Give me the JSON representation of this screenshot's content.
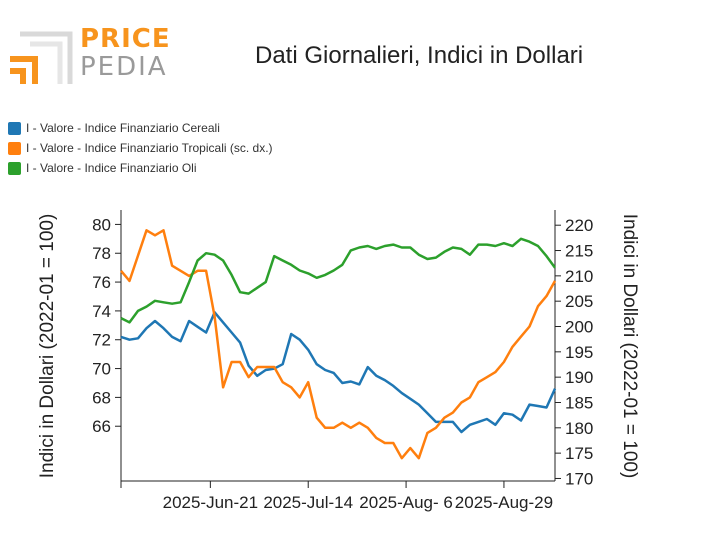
{
  "logo": {
    "word_a": "PRICE",
    "word_b": "PEDIA",
    "color_a": "#f7941d",
    "color_b": "#9a9a9a"
  },
  "title": "Dati Giornalieri, Indici in Dollari",
  "chart_data": {
    "type": "line",
    "title": "Dati Giornalieri, Indici in Dollari",
    "ylabel_left": "Indici in Dollari (2022-01 = 100)",
    "ylabel_right": "Indici in Dollari (2022-01 = 100)",
    "ylim_left": [
      62.2,
      81
    ],
    "ylim_right": [
      169.5,
      223
    ],
    "yticks_left": [
      66,
      68,
      70,
      72,
      74,
      76,
      78,
      80
    ],
    "yticks_right": [
      170,
      175,
      180,
      185,
      190,
      195,
      200,
      205,
      210,
      215,
      220
    ],
    "x_ticks": [
      "2025-Jun-21",
      "2025-Jul-14",
      "2025-Aug- 6",
      "2025-Aug-29"
    ],
    "x_day_range": [
      0,
      102
    ],
    "x_tick_days": [
      21,
      44,
      67,
      90
    ],
    "grid": false,
    "legend_position": "top-left",
    "series": [
      {
        "name": "I - Valore - Indice Finanziario Cereali",
        "axis": "left",
        "color": "#1f77b4",
        "x": [
          0,
          2,
          4,
          6,
          8,
          10,
          12,
          14,
          16,
          18,
          20,
          22,
          24,
          26,
          28,
          30,
          32,
          34,
          36,
          38,
          40,
          42,
          44,
          46,
          48,
          50,
          52,
          54,
          56,
          58,
          60,
          62,
          64,
          66,
          68,
          70,
          72,
          74,
          76,
          78,
          80,
          82,
          84,
          86,
          88,
          90,
          92,
          94,
          96,
          98,
          100,
          102
        ],
        "y": [
          72.2,
          72.0,
          72.1,
          72.8,
          73.3,
          72.8,
          72.2,
          71.9,
          73.3,
          72.9,
          72.5,
          73.9,
          73.2,
          72.5,
          71.8,
          70.2,
          69.5,
          69.9,
          70.0,
          70.3,
          72.4,
          72.0,
          71.3,
          70.3,
          69.9,
          69.7,
          69.0,
          69.1,
          68.9,
          70.1,
          69.5,
          69.2,
          68.8,
          68.3,
          67.9,
          67.5,
          66.9,
          66.3,
          66.3,
          66.3,
          65.6,
          66.1,
          66.3,
          66.5,
          66.1,
          66.9,
          66.8,
          66.4,
          67.5,
          67.4,
          67.3,
          68.6
        ]
      },
      {
        "name": "I - Valore - Indice Finanziario Tropicali (sc. dx.)",
        "axis": "right",
        "color": "#ff7f0e",
        "x": [
          0,
          2,
          4,
          6,
          8,
          10,
          12,
          14,
          16,
          18,
          20,
          22,
          24,
          26,
          28,
          30,
          32,
          34,
          36,
          38,
          40,
          42,
          44,
          46,
          48,
          50,
          52,
          54,
          56,
          58,
          60,
          62,
          64,
          66,
          68,
          70,
          72,
          74,
          76,
          78,
          80,
          82,
          84,
          86,
          88,
          90,
          92,
          94,
          96,
          98,
          100,
          102
        ],
        "y": [
          211,
          209,
          214,
          219,
          218,
          219,
          212,
          211,
          210,
          211,
          211,
          202,
          188,
          193,
          193,
          190,
          192,
          192,
          192,
          189,
          188,
          186,
          189,
          182,
          180,
          180,
          181,
          180,
          181,
          180,
          178,
          177,
          177,
          174,
          176,
          174,
          179,
          180,
          182,
          183,
          185,
          186,
          189,
          190,
          191,
          193,
          196,
          198,
          200,
          204,
          206,
          209
        ]
      },
      {
        "name": "I - Valore - Indice Finanziario Oli",
        "axis": "left",
        "color": "#2ca02c",
        "x": [
          0,
          2,
          4,
          6,
          8,
          10,
          12,
          14,
          16,
          18,
          20,
          22,
          24,
          26,
          28,
          30,
          32,
          34,
          36,
          38,
          40,
          42,
          44,
          46,
          48,
          50,
          52,
          54,
          56,
          58,
          60,
          62,
          64,
          66,
          68,
          70,
          72,
          74,
          76,
          78,
          80,
          82,
          84,
          86,
          88,
          90,
          92,
          94,
          96,
          98,
          100,
          102
        ],
        "y": [
          73.5,
          73.2,
          74.0,
          74.3,
          74.7,
          74.6,
          74.5,
          74.6,
          76.0,
          77.5,
          78.0,
          77.9,
          77.5,
          76.5,
          75.3,
          75.2,
          75.6,
          76.0,
          77.8,
          77.5,
          77.2,
          76.8,
          76.6,
          76.3,
          76.5,
          76.8,
          77.2,
          78.2,
          78.4,
          78.5,
          78.3,
          78.5,
          78.6,
          78.4,
          78.4,
          77.9,
          77.6,
          77.7,
          78.1,
          78.4,
          78.3,
          77.9,
          78.6,
          78.6,
          78.5,
          78.7,
          78.5,
          79.0,
          78.8,
          78.5,
          77.8,
          77.0
        ]
      }
    ]
  }
}
